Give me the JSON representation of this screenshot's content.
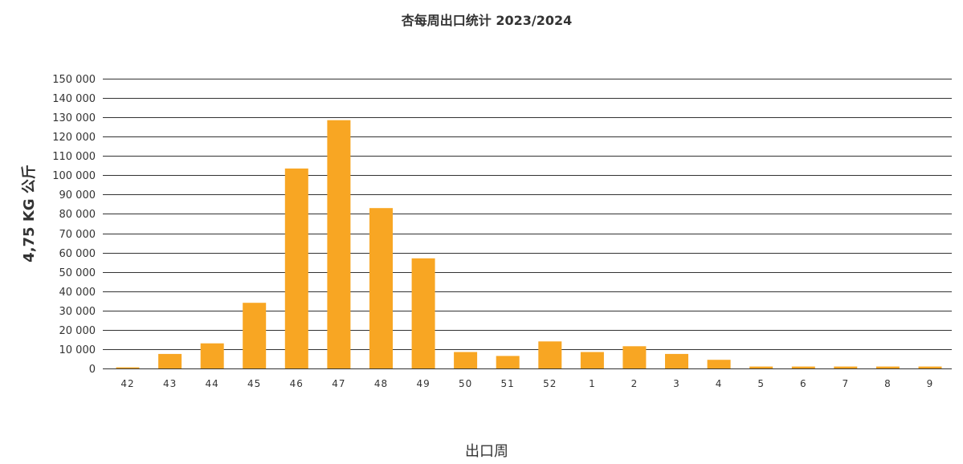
{
  "chart_data": {
    "type": "bar",
    "title": "杏每周出口统计 2023/2024",
    "xlabel": "出口周",
    "ylabel": "4,75 KG 公斤",
    "categories": [
      "42",
      "43",
      "44",
      "45",
      "46",
      "47",
      "48",
      "49",
      "50",
      "51",
      "52",
      "1",
      "2",
      "3",
      "4",
      "5",
      "6",
      "7",
      "8",
      "9"
    ],
    "series": [
      {
        "values": [
          600,
          7500,
          13000,
          34000,
          103500,
          128500,
          83000,
          57000,
          8500,
          6500,
          14000,
          8500,
          11500,
          7500,
          4500,
          1000,
          1000,
          1000,
          1000,
          1000
        ]
      }
    ],
    "ylim": [
      0,
      150000
    ],
    "yticks": [
      0,
      10000,
      20000,
      30000,
      40000,
      50000,
      60000,
      70000,
      80000,
      90000,
      100000,
      110000,
      120000,
      130000,
      140000,
      150000
    ],
    "ytick_labels": [
      "0",
      "10 000",
      "20 000",
      "30 000",
      "40 000",
      "50 000",
      "60 000",
      "70 000",
      "80 000",
      "90 000",
      "100 000",
      "110 000",
      "120 000",
      "130 000",
      "140 000",
      "150 000"
    ],
    "grid": true,
    "legend": "none",
    "bar_color": "#F8A623",
    "gridline_color": "#333333"
  }
}
